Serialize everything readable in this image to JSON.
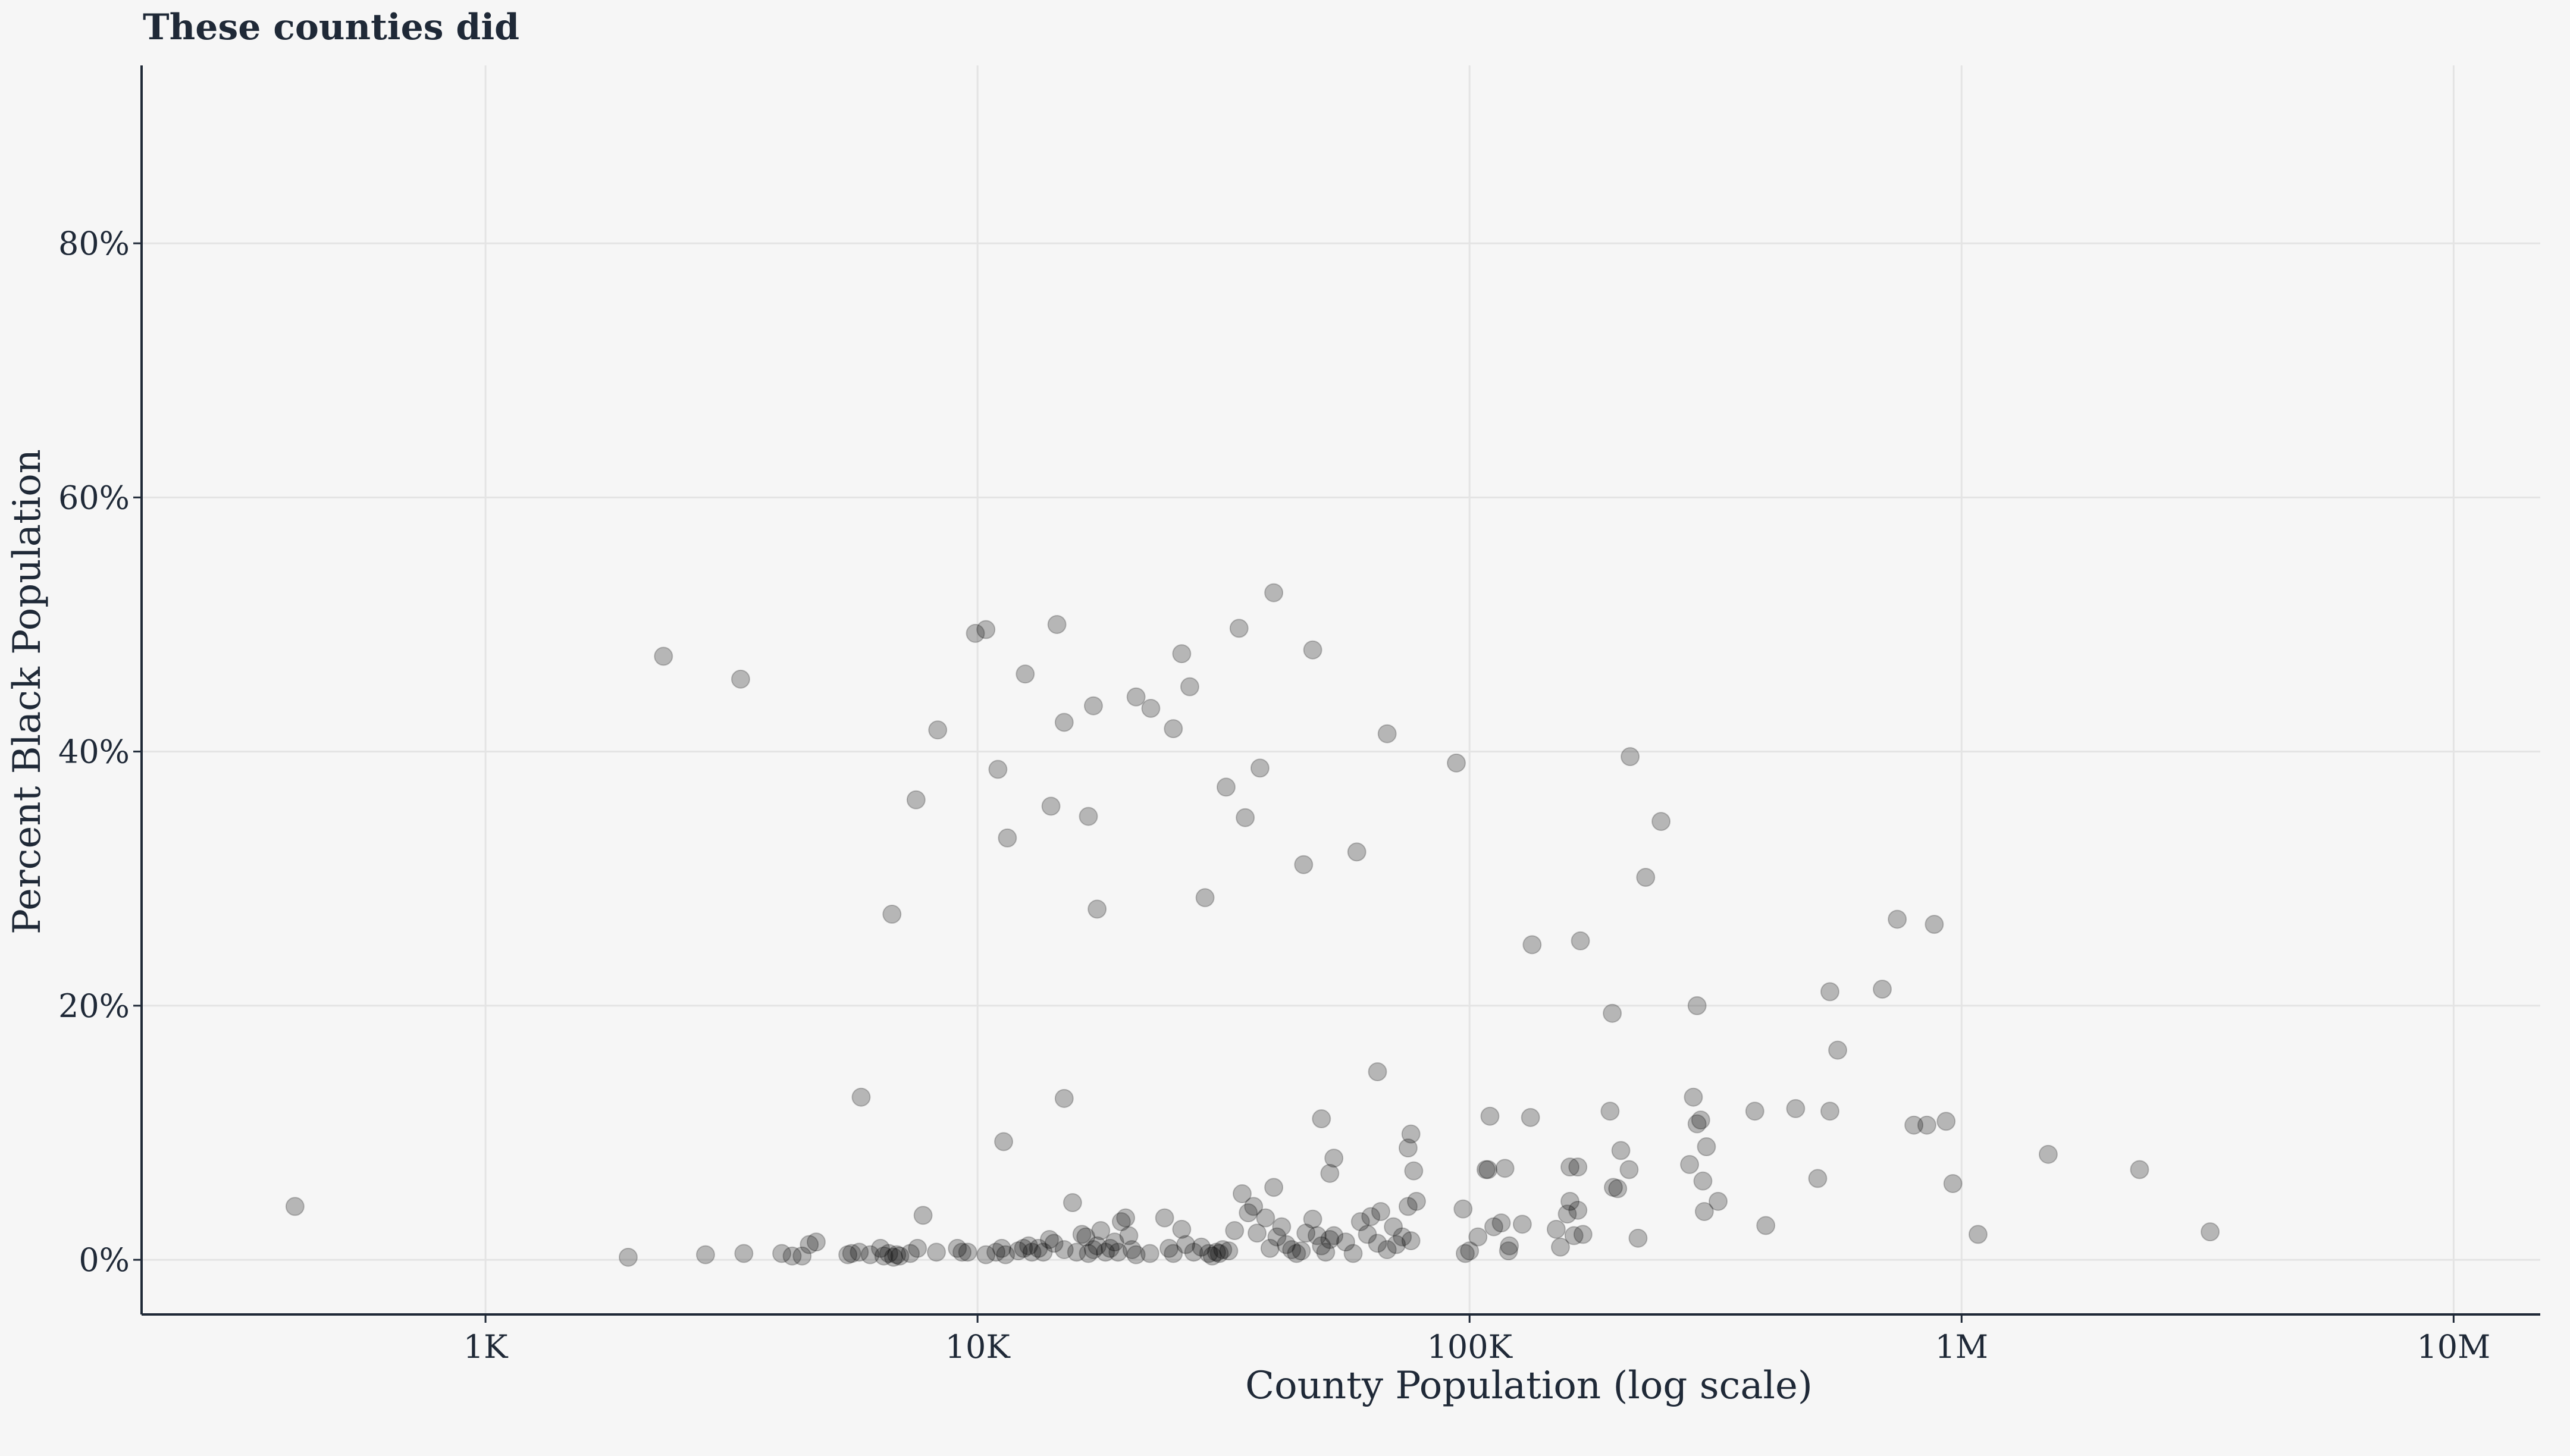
{
  "chart_data": {
    "type": "scatter",
    "title": "These counties did",
    "xlabel": "County Population (log scale)",
    "ylabel": "Percent Black Population",
    "x_scale": "log",
    "xlim": [
      200,
      15000000
    ],
    "ylim": [
      -4.3,
      94
    ],
    "grid": true,
    "x_ticks": [
      {
        "value": 1000,
        "label": "1K"
      },
      {
        "value": 10000,
        "label": "10K"
      },
      {
        "value": 100000,
        "label": "100K"
      },
      {
        "value": 1000000,
        "label": "1M"
      },
      {
        "value": 10000000,
        "label": "10M"
      }
    ],
    "y_ticks": [
      {
        "value": 0,
        "label": "0%"
      },
      {
        "value": 20,
        "label": "20%"
      },
      {
        "value": 40,
        "label": "40%"
      },
      {
        "value": 60,
        "label": "60%"
      },
      {
        "value": 80,
        "label": "80%"
      }
    ],
    "points": [
      [
        410,
        4.2
      ],
      [
        1950,
        0.2
      ],
      [
        2800,
        0.4
      ],
      [
        3350,
        0.5
      ],
      [
        4000,
        0.5
      ],
      [
        4200,
        0.3
      ],
      [
        4400,
        0.3
      ],
      [
        4550,
        1.2
      ],
      [
        4700,
        1.4
      ],
      [
        5450,
        0.4
      ],
      [
        5550,
        0.5
      ],
      [
        5750,
        0.6
      ],
      [
        6050,
        0.4
      ],
      [
        6350,
        0.9
      ],
      [
        6450,
        0.3
      ],
      [
        6600,
        0.5
      ],
      [
        6750,
        0.2
      ],
      [
        6850,
        0.4
      ],
      [
        6950,
        0.3
      ],
      [
        7300,
        0.5
      ],
      [
        7550,
        0.9
      ],
      [
        7750,
        3.5
      ],
      [
        8250,
        0.6
      ],
      [
        9100,
        0.9
      ],
      [
        9300,
        0.6
      ],
      [
        9550,
        0.6
      ],
      [
        10400,
        0.4
      ],
      [
        10900,
        0.6
      ],
      [
        11200,
        0.9
      ],
      [
        11400,
        0.4
      ],
      [
        12100,
        0.7
      ],
      [
        12400,
        0.9
      ],
      [
        12700,
        1.1
      ],
      [
        12900,
        0.6
      ],
      [
        13300,
        0.9
      ],
      [
        13600,
        0.6
      ],
      [
        14000,
        1.6
      ],
      [
        14300,
        1.3
      ],
      [
        15000,
        0.8
      ],
      [
        15600,
        4.5
      ],
      [
        15900,
        0.6
      ],
      [
        16300,
        2.0
      ],
      [
        16600,
        1.8
      ],
      [
        16800,
        0.5
      ],
      [
        17200,
        0.8
      ],
      [
        17500,
        1.1
      ],
      [
        17800,
        2.3
      ],
      [
        18200,
        0.6
      ],
      [
        18600,
        0.9
      ],
      [
        19000,
        1.4
      ],
      [
        19300,
        0.6
      ],
      [
        19600,
        3.0
      ],
      [
        20000,
        3.3
      ],
      [
        20300,
        1.9
      ],
      [
        20600,
        0.8
      ],
      [
        21000,
        0.4
      ],
      [
        22400,
        0.5
      ],
      [
        24000,
        3.3
      ],
      [
        24500,
        0.9
      ],
      [
        25000,
        0.5
      ],
      [
        26000,
        2.4
      ],
      [
        26500,
        1.2
      ],
      [
        27500,
        0.6
      ],
      [
        28500,
        1.0
      ],
      [
        29500,
        0.5
      ],
      [
        30000,
        0.3
      ],
      [
        30600,
        0.6
      ],
      [
        31000,
        0.5
      ],
      [
        31500,
        0.8
      ],
      [
        32400,
        0.7
      ],
      [
        33300,
        2.3
      ],
      [
        34500,
        5.2
      ],
      [
        35500,
        3.7
      ],
      [
        36400,
        4.2
      ],
      [
        37000,
        2.1
      ],
      [
        38500,
        3.3
      ],
      [
        39300,
        0.9
      ],
      [
        40000,
        5.7
      ],
      [
        40600,
        1.8
      ],
      [
        41500,
        2.6
      ],
      [
        42400,
        1.2
      ],
      [
        43500,
        0.8
      ],
      [
        44500,
        0.5
      ],
      [
        45500,
        0.7
      ],
      [
        46500,
        2.1
      ],
      [
        48000,
        3.2
      ],
      [
        49000,
        1.9
      ],
      [
        50000,
        1.1
      ],
      [
        51000,
        0.6
      ],
      [
        52000,
        1.6
      ],
      [
        53000,
        1.9
      ],
      [
        56000,
        1.4
      ],
      [
        58000,
        0.5
      ],
      [
        60000,
        3.0
      ],
      [
        62000,
        2.0
      ],
      [
        63000,
        3.4
      ],
      [
        65000,
        1.3
      ],
      [
        66000,
        3.8
      ],
      [
        68000,
        0.8
      ],
      [
        70000,
        2.6
      ],
      [
        71000,
        1.2
      ],
      [
        73000,
        1.8
      ],
      [
        75000,
        4.2
      ],
      [
        76000,
        1.5
      ],
      [
        78000,
        4.6
      ],
      [
        98000,
        0.5
      ],
      [
        100000,
        0.7
      ],
      [
        104000,
        1.8
      ],
      [
        108000,
        7.1
      ],
      [
        109000,
        7.1
      ],
      [
        112000,
        2.6
      ],
      [
        116000,
        2.9
      ],
      [
        120000,
        0.7
      ],
      [
        120500,
        1.1
      ],
      [
        128000,
        2.8
      ],
      [
        150000,
        2.4
      ],
      [
        153000,
        1.0
      ],
      [
        158000,
        3.6
      ],
      [
        160000,
        4.6
      ],
      [
        163000,
        1.9
      ],
      [
        166000,
        3.9
      ],
      [
        170000,
        2.0
      ],
      [
        200000,
        5.6
      ],
      [
        220000,
        1.7
      ],
      [
        280000,
        7.5
      ],
      [
        300000,
        3.8
      ],
      [
        320000,
        4.6
      ],
      [
        400000,
        2.7
      ],
      [
        800000,
        10.6
      ],
      [
        960000,
        6.0
      ],
      [
        1080000,
        2.0
      ],
      [
        3200000,
        2.2
      ],
      [
        2300,
        47.5
      ],
      [
        3300,
        45.7
      ],
      [
        6700,
        27.2
      ],
      [
        7500,
        36.2
      ],
      [
        8300,
        41.7
      ],
      [
        9900,
        49.3
      ],
      [
        10400,
        49.6
      ],
      [
        11000,
        38.6
      ],
      [
        11500,
        33.2
      ],
      [
        12500,
        46.1
      ],
      [
        14100,
        35.7
      ],
      [
        14500,
        50.0
      ],
      [
        15000,
        42.3
      ],
      [
        16800,
        34.9
      ],
      [
        17200,
        43.6
      ],
      [
        17500,
        27.6
      ],
      [
        21000,
        44.3
      ],
      [
        22500,
        43.4
      ],
      [
        25000,
        41.8
      ],
      [
        26000,
        47.7
      ],
      [
        27000,
        45.1
      ],
      [
        29000,
        28.5
      ],
      [
        32000,
        37.2
      ],
      [
        34000,
        49.7
      ],
      [
        35000,
        34.8
      ],
      [
        37500,
        38.7
      ],
      [
        40000,
        52.5
      ],
      [
        46000,
        31.1
      ],
      [
        48000,
        48.0
      ],
      [
        59000,
        32.1
      ],
      [
        68000,
        41.4
      ],
      [
        94000,
        39.1
      ],
      [
        134000,
        24.8
      ],
      [
        168000,
        25.1
      ],
      [
        212000,
        39.6
      ],
      [
        228000,
        30.1
      ],
      [
        245000,
        34.5
      ],
      [
        290000,
        20.0
      ],
      [
        540000,
        21.1
      ],
      [
        690000,
        21.3
      ],
      [
        740000,
        26.8
      ],
      [
        880000,
        26.4
      ],
      [
        195000,
        19.4
      ],
      [
        5800,
        12.8
      ],
      [
        11300,
        9.3
      ],
      [
        15000,
        12.7
      ],
      [
        50000,
        11.1
      ],
      [
        52000,
        6.8
      ],
      [
        53000,
        8.0
      ],
      [
        65000,
        14.8
      ],
      [
        75000,
        8.8
      ],
      [
        76000,
        9.9
      ],
      [
        77000,
        7.0
      ],
      [
        110000,
        11.3
      ],
      [
        118000,
        7.2
      ],
      [
        133000,
        11.2
      ],
      [
        160000,
        7.3
      ],
      [
        166000,
        7.3
      ],
      [
        193000,
        11.7
      ],
      [
        196000,
        5.7
      ],
      [
        203000,
        8.6
      ],
      [
        211000,
        7.1
      ],
      [
        285000,
        12.8
      ],
      [
        290000,
        10.7
      ],
      [
        295000,
        11.0
      ],
      [
        298000,
        6.2
      ],
      [
        303000,
        8.9
      ],
      [
        380000,
        11.7
      ],
      [
        460000,
        11.9
      ],
      [
        510000,
        6.4
      ],
      [
        540000,
        11.7
      ],
      [
        560000,
        16.5
      ],
      [
        850000,
        10.6
      ],
      [
        930000,
        10.9
      ],
      [
        1500000,
        8.3
      ],
      [
        2300000,
        7.1
      ],
      [
        97000,
        4.0
      ]
    ]
  }
}
